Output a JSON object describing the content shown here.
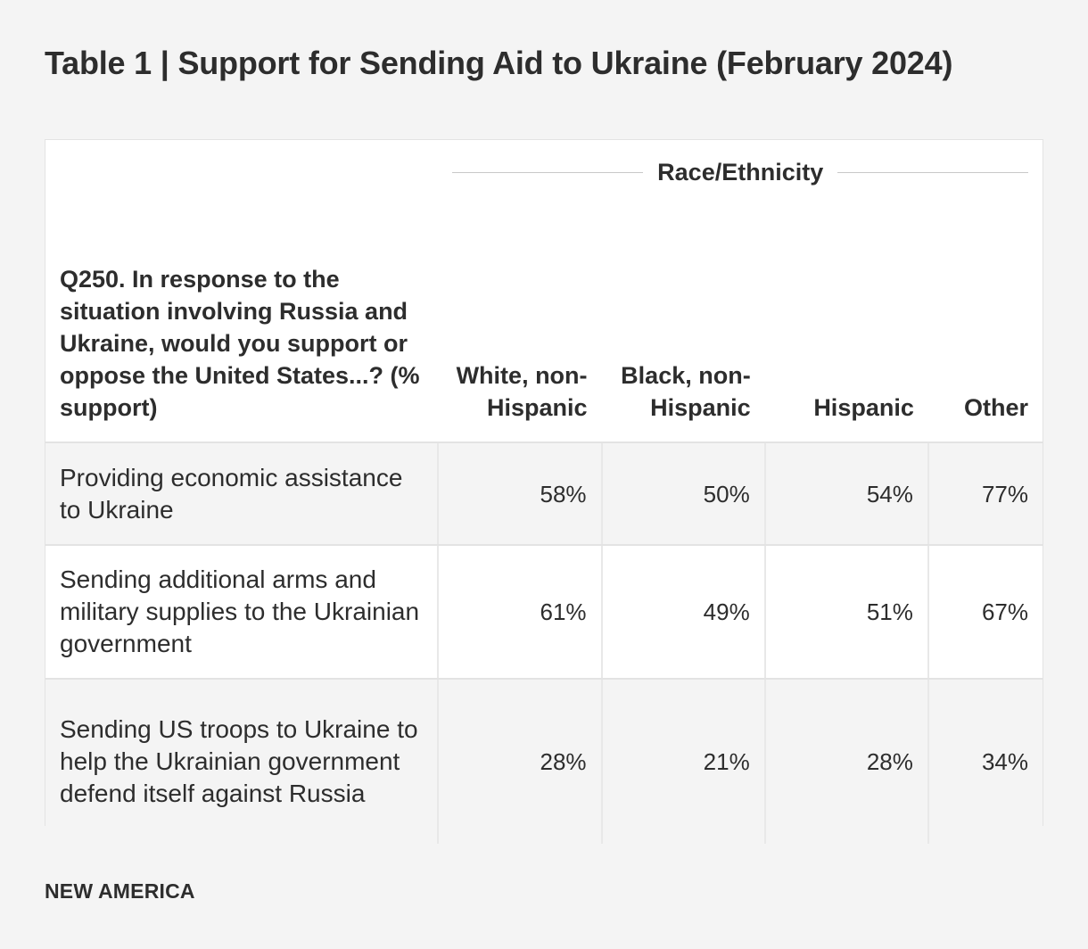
{
  "title": "Table 1 | Support for Sending Aid to Ukraine (February 2024)",
  "source": "NEW AMERICA",
  "chart_data": {
    "type": "table",
    "title": "Table 1 | Support for Sending Aid to Ukraine (February 2024)",
    "group_header": "Race/Ethnicity",
    "question_header": "Q250. In response to the situation involving Russia and Ukraine, would you support or oppose the United States...? (% support)",
    "columns": [
      "White, non-Hispanic",
      "Black, non-Hispanic",
      "Hispanic",
      "Other"
    ],
    "rows": [
      {
        "label": "Providing economic assistance to Ukraine",
        "values": [
          "58%",
          "50%",
          "54%",
          "77%"
        ]
      },
      {
        "label": "Sending additional arms and military supplies to the Ukrainian government",
        "values": [
          "61%",
          "49%",
          "51%",
          "67%"
        ]
      },
      {
        "label": "Sending US troops to Ukraine to help the Ukrainian government defend itself against Russia",
        "values": [
          "28%",
          "21%",
          "28%",
          "34%"
        ]
      }
    ]
  }
}
